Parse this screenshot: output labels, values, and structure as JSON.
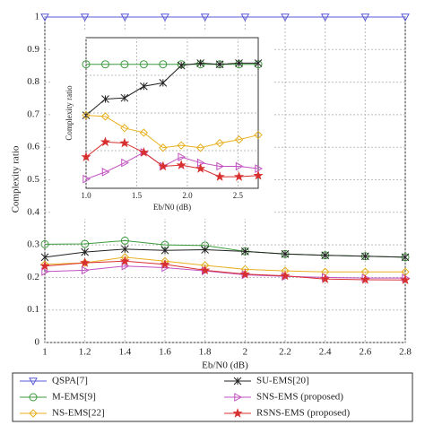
{
  "chart_data": [
    {
      "type": "line",
      "ylabel": "Complexity ratio",
      "xlabel": "Eb/N0 (dB)",
      "x": [
        1,
        1.2,
        1.4,
        1.6,
        1.8,
        2,
        2.2,
        2.4,
        2.6,
        2.8
      ],
      "xlim": [
        1,
        2.8
      ],
      "xticks": [
        1,
        1.2,
        1.4,
        1.6,
        1.8,
        2,
        2.2,
        2.4,
        2.6,
        2.8
      ],
      "ylim": [
        0,
        1
      ],
      "yticks": [
        0,
        0.1,
        0.2,
        0.3,
        0.4,
        0.5,
        0.6,
        0.7,
        0.8,
        0.9,
        1
      ],
      "grid": true,
      "legend": "bottom",
      "series": [
        {
          "name": "QSPA[7]",
          "color": "#5a5ad8",
          "marker": "tri-down",
          "values": [
            1,
            1,
            1,
            1,
            1,
            1,
            1,
            1,
            1,
            1
          ]
        },
        {
          "name": "M-EMS[9]",
          "color": "#3c9a3c",
          "marker": "circle",
          "values": [
            0.302,
            0.303,
            0.313,
            0.3,
            0.298,
            0.28,
            0.272,
            0.268,
            0.265,
            0.262
          ]
        },
        {
          "name": "NS-EMS[22]",
          "color": "#e8b020",
          "marker": "diamond",
          "values": [
            0.24,
            0.245,
            0.262,
            0.25,
            0.237,
            0.225,
            0.22,
            0.217,
            0.217,
            0.217
          ]
        },
        {
          "name": "SU-EMS[20]",
          "color": "#222222",
          "marker": "asterisk",
          "values": [
            0.262,
            0.278,
            0.287,
            0.283,
            0.285,
            0.28,
            0.272,
            0.268,
            0.265,
            0.262
          ]
        },
        {
          "name": "SNS-EMS (proposed)",
          "color": "#c050c0",
          "marker": "tri-right",
          "values": [
            0.218,
            0.222,
            0.235,
            0.23,
            0.22,
            0.208,
            0.203,
            0.2,
            0.198,
            0.198
          ]
        },
        {
          "name": "RSNS-EMS (proposed)",
          "color": "#d83030",
          "marker": "star",
          "values": [
            0.235,
            0.245,
            0.25,
            0.24,
            0.222,
            0.21,
            0.205,
            0.195,
            0.193,
            0.192
          ]
        }
      ]
    },
    {
      "type": "line",
      "ylabel": "Complexity ratio",
      "xlabel": "Eb/N0 (dB)",
      "x": [
        1,
        1.19,
        1.38,
        1.57,
        1.76,
        1.94,
        2.13,
        2.32,
        2.51,
        2.7
      ],
      "xlim": [
        1,
        2.7
      ],
      "xticks": [
        {
          "value": 1,
          "label": "1.0"
        },
        1.5,
        {
          "value": 2,
          "label": "2.0"
        },
        2.5
      ],
      "ylim": [
        0.18,
        0.31
      ],
      "grid": true,
      "series": [
        {
          "color": "#3c9a3c",
          "marker": "circle",
          "values": [
            0.287,
            0.287,
            0.287,
            0.287,
            0.287,
            0.287,
            0.287,
            0.287,
            0.287,
            0.287
          ]
        },
        {
          "color": "#222222",
          "marker": "asterisk",
          "values": [
            0.243,
            0.257,
            0.258,
            0.268,
            0.271,
            0.286,
            0.288,
            0.287,
            0.288,
            0.288
          ]
        },
        {
          "color": "#e8b020",
          "marker": "diamond",
          "values": [
            0.243,
            0.242,
            0.232,
            0.228,
            0.215,
            0.217,
            0.215,
            0.219,
            0.222,
            0.226
          ]
        },
        {
          "color": "#c050c0",
          "marker": "tri-right",
          "values": [
            0.188,
            0.194,
            0.202,
            0.211,
            0.199,
            0.207,
            0.202,
            0.199,
            0.199,
            0.197
          ]
        },
        {
          "color": "#d83030",
          "marker": "star",
          "values": [
            0.207,
            0.22,
            0.219,
            0.211,
            0.199,
            0.2,
            0.197,
            0.19,
            0.19,
            0.191
          ]
        }
      ]
    }
  ]
}
